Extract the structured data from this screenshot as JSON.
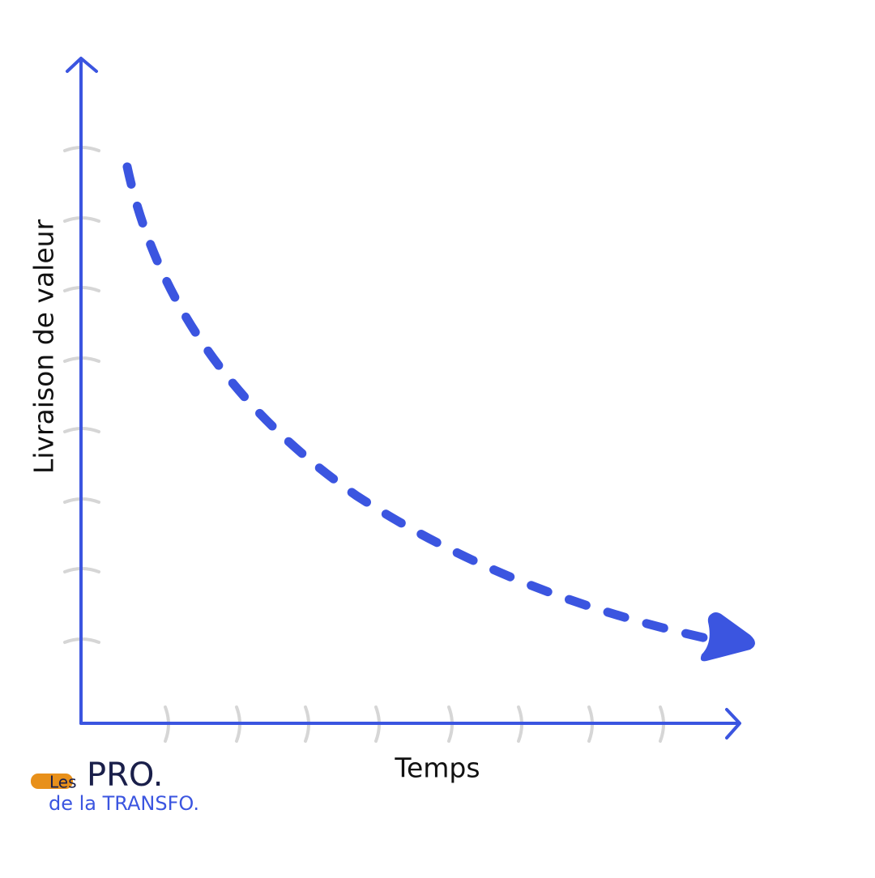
{
  "axes": {
    "y_label": "Livraison de valeur",
    "x_label": "Temps"
  },
  "logo": {
    "les": "Les",
    "pro": "PRO.",
    "transfo": "de la TRANSFO."
  }
}
